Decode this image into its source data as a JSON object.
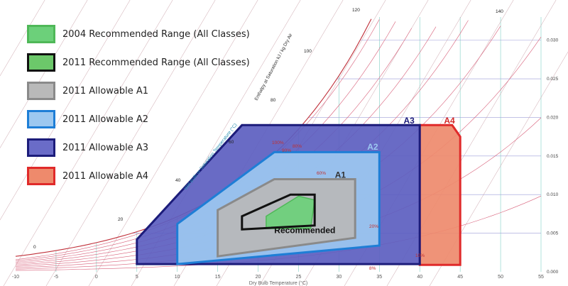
{
  "chart_data": {
    "type": "area",
    "title": "",
    "xlabel": "Dry Bulb Temperature (°C)",
    "ylabel": "",
    "x_ticks": [
      -10,
      -5,
      0,
      5,
      10,
      15,
      20,
      25,
      30,
      35,
      40,
      45,
      50,
      55
    ],
    "xlim": [
      -10,
      55
    ],
    "y_ticks": [
      "0.000",
      "0.005",
      "0.010",
      "0.015",
      "0.020",
      "0.025",
      "0.030"
    ],
    "ylim": [
      0,
      0.033
    ],
    "enthalpy_axis_label": "Enthalpy at Saturation kJ / kg Dry Air",
    "enthalpy_ticks": [
      "0",
      "20",
      "40",
      "60",
      "80",
      "100",
      "120",
      "140"
    ],
    "wet_bulb_label": "Wet Bulb or Saturation Temperature (°C)",
    "rh_labels": [
      "100%",
      "90%",
      "80%",
      "60%",
      "20%",
      "10%",
      "8%"
    ],
    "grid": true,
    "legend": {
      "placement": "top-left",
      "items": [
        {
          "label": "2004 Recommended Range (All Classes)",
          "fill": "#6cd07a",
          "border": "#4fb858"
        },
        {
          "label": "2011 Recommended Range (All Classes)",
          "fill": "#6cc86a",
          "border": "#111111"
        },
        {
          "label": "2011 Allowable A1",
          "fill": "#b9b9b9",
          "border": "#8a8a8a"
        },
        {
          "label": "2011 Allowable A2",
          "fill": "#9cc8f0",
          "border": "#1e7ed6"
        },
        {
          "label": "2011 Allowable A3",
          "fill": "#6a6cc8",
          "border": "#1c1c7a"
        },
        {
          "label": "2011 Allowable A4",
          "fill": "#ee8a6c",
          "border": "#e02a2a"
        }
      ]
    },
    "regions": [
      {
        "name": "A4",
        "label": "A4",
        "points": [
          [
            40,
            0.0009
          ],
          [
            45,
            0.0009
          ],
          [
            45,
            0.0175
          ],
          [
            44,
            0.019
          ],
          [
            40,
            0.019
          ]
        ],
        "fill": "#ee8a6c",
        "stroke": "#e02a2a",
        "label_at": [
          43,
          0.0192
        ],
        "label_color": "#d22a2a"
      },
      {
        "name": "A3",
        "label": "A3",
        "points": [
          [
            5,
            0.001
          ],
          [
            40,
            0.001
          ],
          [
            40,
            0.019
          ],
          [
            18,
            0.019
          ],
          [
            5,
            0.0042
          ]
        ],
        "fill": "#5c5ec0",
        "stroke": "#1c1c7a",
        "label_at": [
          38,
          0.0192
        ],
        "label_color": "#1c1c7a"
      },
      {
        "name": "A2",
        "label": "A2",
        "points": [
          [
            10,
            0.001
          ],
          [
            35,
            0.0034
          ],
          [
            35,
            0.0155
          ],
          [
            22,
            0.0155
          ],
          [
            10,
            0.0062
          ]
        ],
        "fill": "#9cc8f0",
        "stroke": "#1e7ed6",
        "label_at": [
          33.5,
          0.0158
        ],
        "label_color": "#9cc8f0"
      },
      {
        "name": "A1",
        "label": "A1",
        "points": [
          [
            15,
            0.002
          ],
          [
            32,
            0.0044
          ],
          [
            32,
            0.012
          ],
          [
            22,
            0.012
          ],
          [
            15,
            0.008
          ]
        ],
        "fill": "#b9b9b9",
        "stroke": "#8a8a8a",
        "label_at": [
          29.5,
          0.0122
        ],
        "label_color": "#333333"
      },
      {
        "name": "Recommended-2004",
        "label": "",
        "points": [
          [
            21,
            0.0056
          ],
          [
            26.5,
            0.0056
          ],
          [
            27,
            0.0093
          ],
          [
            25,
            0.0098
          ],
          [
            21,
            0.0072
          ]
        ],
        "fill": "#6cd07a",
        "stroke": "#4fb858"
      },
      {
        "name": "Recommended-2011",
        "label": "Recommended",
        "points": [
          [
            18,
            0.0055
          ],
          [
            27,
            0.006
          ],
          [
            27,
            0.01
          ],
          [
            24,
            0.01
          ],
          [
            18,
            0.0072
          ]
        ],
        "fill": "none",
        "stroke": "#111111",
        "label_at": [
          22,
          0.005
        ],
        "label_color": "#111111"
      }
    ]
  }
}
